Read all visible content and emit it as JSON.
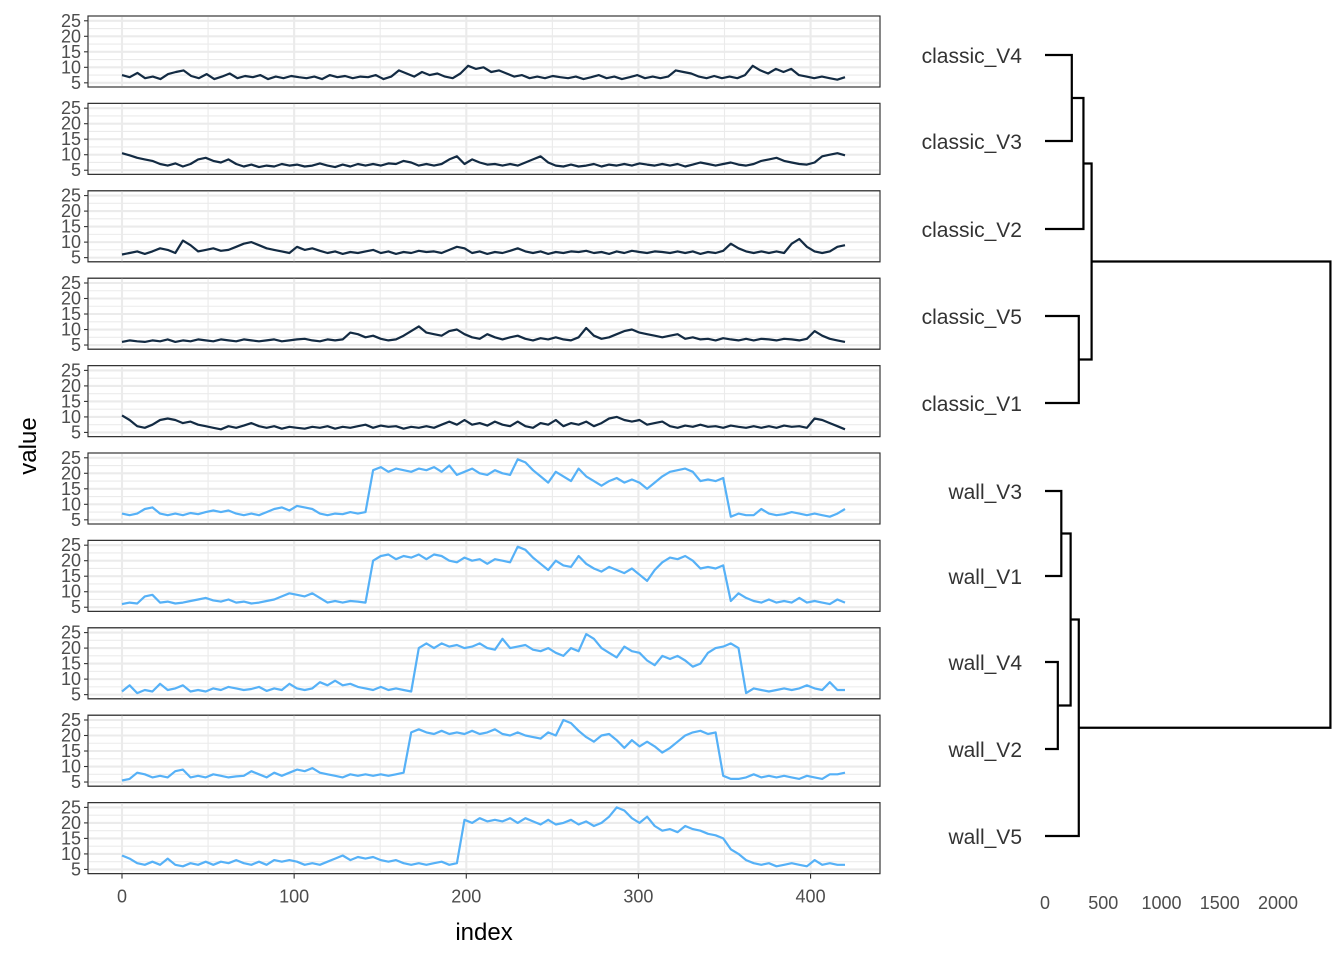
{
  "chart_data": [
    {
      "type": "line",
      "facets": "vertical small multiples",
      "xlabel": "index",
      "ylabel": "value",
      "xlim": [
        0,
        420
      ],
      "ylim": [
        5,
        25
      ],
      "x_ticks": [
        0,
        100,
        200,
        300,
        400
      ],
      "y_ticks": [
        5,
        10,
        15,
        20,
        25
      ],
      "grid": true,
      "colors": {
        "classic": "#132b43",
        "wall": "#56b1f7"
      },
      "series": [
        {
          "group": "classic",
          "values": [
            7.5,
            6.8,
            8.2,
            6.5,
            7.0,
            6.2,
            7.8,
            8.5,
            9.0,
            7.2,
            6.5,
            7.8,
            6.2,
            7.0,
            8.0,
            6.5,
            7.2,
            6.8,
            7.5,
            6.2,
            7.0,
            6.5,
            7.2,
            6.8,
            6.5,
            7.0,
            6.2,
            7.5,
            6.8,
            7.2,
            6.5,
            7.0,
            6.8,
            7.5,
            6.2,
            7.0,
            9.0,
            8.0,
            7.0,
            8.5,
            7.5,
            8.0,
            7.0,
            6.5,
            8.0,
            10.5,
            9.5,
            10.0,
            8.5,
            9.0,
            8.0,
            7.0,
            7.5,
            6.5,
            7.0,
            6.5,
            7.2,
            6.8,
            6.5,
            7.0,
            6.2,
            6.8,
            7.5,
            6.5,
            7.0,
            6.2,
            6.8,
            7.5,
            6.5,
            7.0,
            6.5,
            7.0,
            9.0,
            8.5,
            8.0,
            7.0,
            6.5,
            7.2,
            6.5,
            7.0,
            6.5,
            7.5,
            10.5,
            9.0,
            8.0,
            9.5,
            8.5,
            9.5,
            7.5,
            7.0,
            6.5,
            7.0,
            6.5,
            6.0,
            6.8
          ]
        },
        {
          "group": "classic",
          "values": [
            10.5,
            9.8,
            9.0,
            8.5,
            8.0,
            7.0,
            6.5,
            7.2,
            6.2,
            7.0,
            8.5,
            9.0,
            8.0,
            7.5,
            8.5,
            7.0,
            6.2,
            6.8,
            6.0,
            6.5,
            6.2,
            7.0,
            6.5,
            6.8,
            6.2,
            6.5,
            7.2,
            6.5,
            6.0,
            6.8,
            6.2,
            7.0,
            6.5,
            7.0,
            6.5,
            7.2,
            7.0,
            8.0,
            7.5,
            6.5,
            7.0,
            6.5,
            7.0,
            8.5,
            9.5,
            7.0,
            8.5,
            7.5,
            6.8,
            7.0,
            6.5,
            7.0,
            6.5,
            7.5,
            8.5,
            9.5,
            7.5,
            6.5,
            6.2,
            6.8,
            6.2,
            6.5,
            7.0,
            6.2,
            6.8,
            6.5,
            7.0,
            6.5,
            7.2,
            6.8,
            6.5,
            7.0,
            6.5,
            7.0,
            6.2,
            6.8,
            7.5,
            7.0,
            6.5,
            7.0,
            7.5,
            6.8,
            6.5,
            7.0,
            8.0,
            8.5,
            9.0,
            8.0,
            7.5,
            7.0,
            6.8,
            7.5,
            9.5,
            10.0,
            10.5,
            9.8
          ]
        },
        {
          "group": "classic",
          "values": [
            6.0,
            6.5,
            7.0,
            6.2,
            7.0,
            8.0,
            7.5,
            6.5,
            10.5,
            9.0,
            7.0,
            7.5,
            8.0,
            7.2,
            7.5,
            8.5,
            9.5,
            10.0,
            9.0,
            8.0,
            7.5,
            7.0,
            6.5,
            8.5,
            7.5,
            8.0,
            7.2,
            6.5,
            7.0,
            6.2,
            6.8,
            6.5,
            7.0,
            7.5,
            6.5,
            7.0,
            6.2,
            6.8,
            6.5,
            7.2,
            6.8,
            7.0,
            6.5,
            7.5,
            8.5,
            8.0,
            6.5,
            7.0,
            6.2,
            6.8,
            6.5,
            7.2,
            8.0,
            7.0,
            6.5,
            7.0,
            6.2,
            6.8,
            6.5,
            7.0,
            6.8,
            7.2,
            6.5,
            6.8,
            6.2,
            7.0,
            6.5,
            7.2,
            6.8,
            6.5,
            7.0,
            6.8,
            6.5,
            7.0,
            6.5,
            7.0,
            6.2,
            6.8,
            6.5,
            7.2,
            9.5,
            8.0,
            7.0,
            6.5,
            7.0,
            6.5,
            7.0,
            6.5,
            9.5,
            11.0,
            8.5,
            7.0,
            6.5,
            7.0,
            8.5,
            9.0
          ]
        },
        {
          "group": "classic",
          "values": [
            6.0,
            6.5,
            6.2,
            6.0,
            6.5,
            6.2,
            6.8,
            6.0,
            6.5,
            6.2,
            6.8,
            6.5,
            6.2,
            6.8,
            6.5,
            6.2,
            6.8,
            6.5,
            6.2,
            6.5,
            6.8,
            6.2,
            6.5,
            6.8,
            7.0,
            6.5,
            6.2,
            6.8,
            6.5,
            6.8,
            9.0,
            8.5,
            7.5,
            8.0,
            7.0,
            6.5,
            6.8,
            8.0,
            9.5,
            11.0,
            9.0,
            8.5,
            8.0,
            9.5,
            10.0,
            8.5,
            7.5,
            7.0,
            8.5,
            7.5,
            6.8,
            7.5,
            8.0,
            7.0,
            6.5,
            7.2,
            6.8,
            7.5,
            6.8,
            6.5,
            7.5,
            10.5,
            8.0,
            7.0,
            7.5,
            8.5,
            9.5,
            10.0,
            9.0,
            8.5,
            8.0,
            7.5,
            8.0,
            8.5,
            7.0,
            7.5,
            6.8,
            7.0,
            6.5,
            7.2,
            6.8,
            6.5,
            7.0,
            6.5,
            7.0,
            6.8,
            6.5,
            7.0,
            6.8,
            6.5,
            7.0,
            9.5,
            8.0,
            7.0,
            6.5,
            6.0
          ]
        },
        {
          "group": "classic",
          "values": [
            10.5,
            9.0,
            7.0,
            6.5,
            7.5,
            9.0,
            9.5,
            9.0,
            8.0,
            8.5,
            7.5,
            7.0,
            6.5,
            6.0,
            7.0,
            6.5,
            7.2,
            8.0,
            7.0,
            6.5,
            7.0,
            6.2,
            6.8,
            6.5,
            6.2,
            6.8,
            6.5,
            7.0,
            6.2,
            6.8,
            6.5,
            7.0,
            7.5,
            6.5,
            7.2,
            6.8,
            7.0,
            6.2,
            6.8,
            6.5,
            7.0,
            6.5,
            7.5,
            8.5,
            7.5,
            9.0,
            7.5,
            8.0,
            7.2,
            8.5,
            7.5,
            7.0,
            8.5,
            7.0,
            6.5,
            8.0,
            7.5,
            9.0,
            7.0,
            8.0,
            7.5,
            8.5,
            7.0,
            8.0,
            9.5,
            10.0,
            9.0,
            8.5,
            9.0,
            7.5,
            8.0,
            8.5,
            7.0,
            6.5,
            7.2,
            6.8,
            7.5,
            6.8,
            7.0,
            6.5,
            7.2,
            6.8,
            6.5,
            7.0,
            6.5,
            7.0,
            6.5,
            7.2,
            6.8,
            7.0,
            6.5,
            9.5,
            9.0,
            8.0,
            7.0,
            6.0
          ]
        },
        {
          "group": "wall",
          "values": [
            7.0,
            6.5,
            7.0,
            8.5,
            9.0,
            7.0,
            6.5,
            7.0,
            6.5,
            7.2,
            6.8,
            7.5,
            8.0,
            7.5,
            8.0,
            7.0,
            6.5,
            7.0,
            6.5,
            7.5,
            8.5,
            9.0,
            8.0,
            9.5,
            9.0,
            8.5,
            7.0,
            6.5,
            7.0,
            6.8,
            7.5,
            7.0,
            7.5,
            21.0,
            22.0,
            20.5,
            21.5,
            21.0,
            20.5,
            21.5,
            21.0,
            22.0,
            20.5,
            22.5,
            19.5,
            20.5,
            21.5,
            20.0,
            19.5,
            21.0,
            20.0,
            19.5,
            24.5,
            23.5,
            21.0,
            19.0,
            17.0,
            20.5,
            19.0,
            17.5,
            21.5,
            19.0,
            17.5,
            16.0,
            17.5,
            18.5,
            17.0,
            18.0,
            17.0,
            15.0,
            17.0,
            19.0,
            20.5,
            21.0,
            21.5,
            20.5,
            17.5,
            18.0,
            17.5,
            18.5,
            6.0,
            7.0,
            6.5,
            6.5,
            8.5,
            7.0,
            6.5,
            6.8,
            7.5,
            7.0,
            6.5,
            7.0,
            6.5,
            6.0,
            7.0,
            8.5
          ]
        },
        {
          "group": "wall",
          "values": [
            6.0,
            6.5,
            6.2,
            8.5,
            9.0,
            6.5,
            6.8,
            6.2,
            6.5,
            7.0,
            7.5,
            8.0,
            7.2,
            6.8,
            7.5,
            6.5,
            6.8,
            6.2,
            6.5,
            7.0,
            7.5,
            8.5,
            9.5,
            9.0,
            8.5,
            9.5,
            8.0,
            6.5,
            7.0,
            6.5,
            7.0,
            6.8,
            6.5,
            20.0,
            21.5,
            22.0,
            20.5,
            21.5,
            21.0,
            22.0,
            20.5,
            22.0,
            21.5,
            20.0,
            19.5,
            21.0,
            20.0,
            20.5,
            19.0,
            20.5,
            20.0,
            19.5,
            24.5,
            23.5,
            21.0,
            19.0,
            17.0,
            20.0,
            18.5,
            18.0,
            21.5,
            19.0,
            17.5,
            16.5,
            18.0,
            17.0,
            16.0,
            17.5,
            15.5,
            13.5,
            17.0,
            19.5,
            21.0,
            20.5,
            21.5,
            20.0,
            17.5,
            18.0,
            17.5,
            18.5,
            7.0,
            9.5,
            8.0,
            7.0,
            6.5,
            7.5,
            6.5,
            7.0,
            6.5,
            8.0,
            6.5,
            7.0,
            6.5,
            6.0,
            7.5,
            6.5
          ]
        },
        {
          "group": "wall",
          "values": [
            6.0,
            8.0,
            5.5,
            6.5,
            6.0,
            8.5,
            6.5,
            7.0,
            8.0,
            6.0,
            6.5,
            6.0,
            7.0,
            6.5,
            7.5,
            7.0,
            6.5,
            6.8,
            7.5,
            6.2,
            7.0,
            6.5,
            8.5,
            7.0,
            6.5,
            7.0,
            9.0,
            8.0,
            9.5,
            8.0,
            8.5,
            7.5,
            7.0,
            6.5,
            7.5,
            6.5,
            7.0,
            6.5,
            6.0,
            20.0,
            21.5,
            20.0,
            21.5,
            20.5,
            21.0,
            20.0,
            20.5,
            21.5,
            20.0,
            19.5,
            23.0,
            20.0,
            20.5,
            21.0,
            19.5,
            19.0,
            20.0,
            18.5,
            17.5,
            20.0,
            19.0,
            24.5,
            23.0,
            20.0,
            18.5,
            17.0,
            20.5,
            19.0,
            18.5,
            16.0,
            14.5,
            17.5,
            16.5,
            17.5,
            16.0,
            14.0,
            15.0,
            18.5,
            20.0,
            20.5,
            21.5,
            20.0,
            5.5,
            7.0,
            6.5,
            6.0,
            6.5,
            7.0,
            6.5,
            7.0,
            8.0,
            7.0,
            6.5,
            9.0,
            6.5,
            6.5
          ]
        },
        {
          "group": "wall",
          "values": [
            5.5,
            6.0,
            8.0,
            7.5,
            6.5,
            7.0,
            6.5,
            8.5,
            9.0,
            6.5,
            7.0,
            6.5,
            7.5,
            7.0,
            6.5,
            6.8,
            7.0,
            8.5,
            7.5,
            6.5,
            8.0,
            7.0,
            8.0,
            9.0,
            8.5,
            9.5,
            8.0,
            7.5,
            7.0,
            6.5,
            7.5,
            7.0,
            7.5,
            7.0,
            7.5,
            7.0,
            7.5,
            8.0,
            21.0,
            22.0,
            21.0,
            20.5,
            21.5,
            20.5,
            21.0,
            20.5,
            21.5,
            20.5,
            21.0,
            22.0,
            20.5,
            20.0,
            21.0,
            20.0,
            19.5,
            19.0,
            21.0,
            20.0,
            25.0,
            24.0,
            21.5,
            19.5,
            18.0,
            20.0,
            20.5,
            18.5,
            16.0,
            18.5,
            16.5,
            18.0,
            16.5,
            14.5,
            16.0,
            18.0,
            20.0,
            21.0,
            21.5,
            20.5,
            21.0,
            7.0,
            6.0,
            6.0,
            6.5,
            7.5,
            6.5,
            7.0,
            6.5,
            7.0,
            6.5,
            6.0,
            7.0,
            6.5,
            6.0,
            7.5,
            7.5,
            8.0
          ]
        },
        {
          "group": "wall",
          "values": [
            9.5,
            8.5,
            7.0,
            6.5,
            7.5,
            6.5,
            8.5,
            6.5,
            6.0,
            7.0,
            6.5,
            7.5,
            6.5,
            7.5,
            7.0,
            8.0,
            7.0,
            6.5,
            7.5,
            6.5,
            8.0,
            7.5,
            8.0,
            7.5,
            6.5,
            7.0,
            6.5,
            7.5,
            8.5,
            9.5,
            8.0,
            9.0,
            8.5,
            9.0,
            8.0,
            7.5,
            8.0,
            7.0,
            6.5,
            7.0,
            6.5,
            7.0,
            7.5,
            6.5,
            7.0,
            21.0,
            20.0,
            21.5,
            20.5,
            21.0,
            20.5,
            21.5,
            20.0,
            21.5,
            20.5,
            19.5,
            21.0,
            19.5,
            20.0,
            21.0,
            19.5,
            20.5,
            19.0,
            20.0,
            22.0,
            25.0,
            24.0,
            21.5,
            20.0,
            22.0,
            19.0,
            17.5,
            18.0,
            17.0,
            19.0,
            18.0,
            17.5,
            16.5,
            16.0,
            15.0,
            11.5,
            10.0,
            8.0,
            7.0,
            6.5,
            7.0,
            6.0,
            6.5,
            7.0,
            6.5,
            6.0,
            8.0,
            6.5,
            7.0,
            6.5,
            6.5
          ]
        }
      ]
    },
    {
      "type": "dendrogram",
      "x_ticks": [
        0,
        500,
        1000,
        1500,
        2000
      ],
      "leaves": [
        "classic_V4",
        "classic_V3",
        "classic_V2",
        "classic_V5",
        "classic_V1",
        "wall_V3",
        "wall_V1",
        "wall_V4",
        "wall_V2",
        "wall_V5"
      ],
      "merges": [
        {
          "left": "classic_V4",
          "right": "classic_V3",
          "height": 230
        },
        {
          "left": "classic_V4+classic_V3",
          "right": "classic_V2",
          "height": 330
        },
        {
          "left": "classic_V5",
          "right": "classic_V1",
          "height": 290
        },
        {
          "left": "classic_V4+classic_V3+classic_V2",
          "right": "classic_V5+classic_V1",
          "height": 400
        },
        {
          "left": "wall_V3",
          "right": "wall_V1",
          "height": 140
        },
        {
          "left": "wall_V4",
          "right": "wall_V2",
          "height": 110
        },
        {
          "left": "wall_V3+wall_V1",
          "right": "wall_V4+wall_V2",
          "height": 220
        },
        {
          "left": "wall_V3+wall_V1+wall_V4+wall_V2",
          "right": "wall_V5",
          "height": 290
        },
        {
          "left": "classic",
          "right": "wall",
          "height": 2450
        }
      ]
    }
  ]
}
